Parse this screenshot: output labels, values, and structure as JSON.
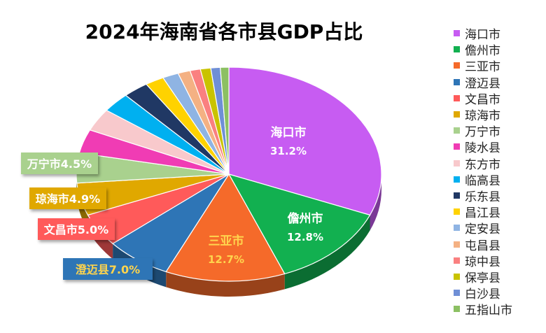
{
  "chart_data": {
    "type": "pie",
    "title": "2024年海南省各市县GDP占比",
    "categories": [
      "海口市",
      "儋州市",
      "三亚市",
      "澄迈县",
      "文昌市",
      "琼海市",
      "万宁市",
      "陵水县",
      "东方市",
      "临高县",
      "乐东县",
      "昌江县",
      "定安县",
      "屯昌县",
      "琼中县",
      "保亭县",
      "白沙县",
      "五指山市"
    ],
    "values": [
      31.2,
      12.8,
      12.7,
      7.0,
      5.0,
      4.9,
      4.5,
      3.6,
      3.4,
      3.0,
      2.7,
      2.0,
      1.7,
      1.3,
      1.1,
      1.1,
      1.0,
      0.9
    ],
    "colors": [
      "#C75CF2",
      "#12B050",
      "#F56A2A",
      "#2E75B6",
      "#FF5A5A",
      "#E0A800",
      "#A9D18E",
      "#F03CB4",
      "#F8C9CC",
      "#00B0F0",
      "#203864",
      "#FFD200",
      "#8FB4E3",
      "#F4B183",
      "#FA8080",
      "#C9C300",
      "#6F8FD6",
      "#8CC063"
    ],
    "data_labels": [
      {
        "category": "海口市",
        "value_text": "31.2%",
        "color": "#C75CF2"
      },
      {
        "category": "儋州市",
        "value_text": "12.8%",
        "color": "#12B050"
      },
      {
        "category": "三亚市",
        "value_text": "12.7%",
        "color": "#F56A2A"
      },
      {
        "category": "澄迈县",
        "value_text": "7.0%",
        "color": "#2E75B6"
      },
      {
        "category": "文昌市",
        "value_text": "5.0%",
        "color": "#FF5A5A"
      },
      {
        "category": "琼海市",
        "value_text": "4.9%",
        "color": "#E0A800"
      },
      {
        "category": "万宁市",
        "value_text": "4.5%",
        "color": "#A9D18E"
      }
    ],
    "legend_position": "right"
  }
}
